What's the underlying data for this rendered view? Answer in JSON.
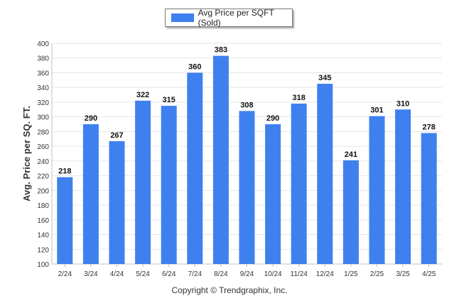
{
  "chart_data": {
    "type": "bar",
    "title": "",
    "xlabel": "",
    "ylabel": "Avg. Price per SQ. FT.",
    "categories": [
      "2/24",
      "3/24",
      "4/24",
      "5/24",
      "6/24",
      "7/24",
      "8/24",
      "9/24",
      "10/24",
      "11/24",
      "12/24",
      "1/25",
      "2/25",
      "3/25",
      "4/25"
    ],
    "series": [
      {
        "name": "Avg Price per SQFT (Sold)",
        "values": [
          218,
          290,
          267,
          322,
          315,
          360,
          383,
          308,
          290,
          318,
          345,
          241,
          301,
          310,
          278
        ]
      }
    ],
    "ylim": [
      100,
      400
    ],
    "yticks": [
      100,
      120,
      140,
      160,
      180,
      200,
      220,
      240,
      260,
      280,
      300,
      320,
      340,
      360,
      380,
      400
    ],
    "grid": true,
    "legend_position": "top-center",
    "data_labels": true,
    "bar_color": "#3f80ef"
  },
  "footer": {
    "copyright": "Copyright © Trendgraphix, Inc."
  }
}
